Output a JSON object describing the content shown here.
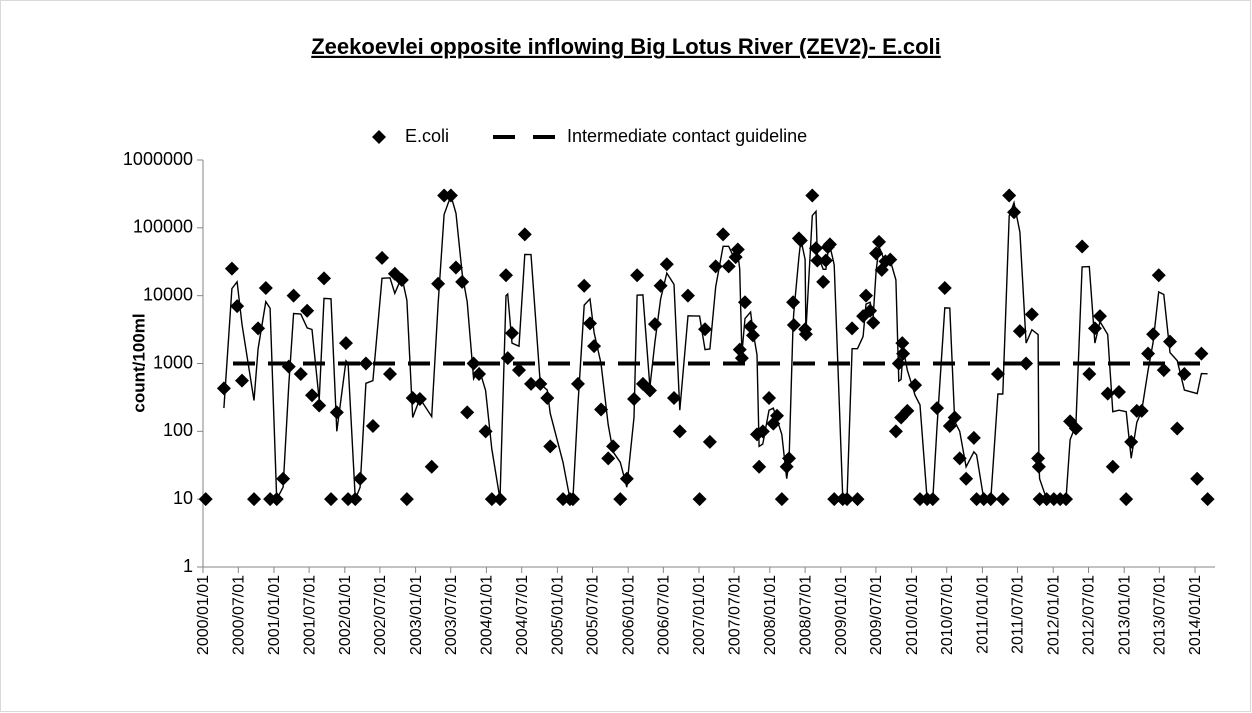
{
  "chart_data": {
    "type": "scatter",
    "title": "Zeekoevlei opposite inflowing Big Lotus River (ZEV2)- E.coli",
    "y_label": "count/100ml",
    "log_scale_y": true,
    "legend": "top",
    "trendline": {
      "type": "moving_average",
      "period": 2,
      "color": "#000000"
    },
    "xlim": [
      "2000/01/01",
      "2014/04/14"
    ],
    "xticks": [
      "2000/01/01",
      "2000/07/01",
      "2001/01/01",
      "2001/07/01",
      "2002/01/01",
      "2002/07/01",
      "2003/01/01",
      "2003/07/01",
      "2004/01/01",
      "2004/07/01",
      "2005/01/01",
      "2005/07/01",
      "2006/01/01",
      "2006/07/01",
      "2007/01/01",
      "2007/07/01",
      "2008/01/01",
      "2008/07/01",
      "2009/01/01",
      "2009/07/01",
      "2010/01/01",
      "2010/07/01",
      "2011/01/01",
      "2011/07/01",
      "2012/01/01",
      "2012/07/01",
      "2013/01/01",
      "2013/07/01",
      "2014/01/01"
    ],
    "ylim": [
      1,
      1000000
    ],
    "yticks": [
      1,
      10,
      100,
      1000,
      10000,
      100000,
      1000000
    ],
    "guidelines": [
      {
        "name": "Intermediate contact guideline",
        "value": 1000,
        "color": "#000000",
        "dashed": true
      }
    ],
    "series": [
      {
        "name": "E.coli",
        "marker": "diamond",
        "color": "#000000",
        "x": [
          "2000/01/15",
          "2000/04/18",
          "2000/05/29",
          "2000/06/25",
          "2000/07/20",
          "2000/09/20",
          "2000/10/11",
          "2000/11/20",
          "2000/12/12",
          "2001/01/15",
          "2001/02/17",
          "2001/03/18",
          "2001/04/12",
          "2001/05/19",
          "2001/06/21",
          "2001/07/16",
          "2001/08/22",
          "2001/09/16",
          "2001/10/22",
          "2001/11/21",
          "2002/01/07",
          "2002/01/18",
          "2002/02/24",
          "2002/03/21",
          "2002/04/20",
          "2002/05/26",
          "2002/07/12",
          "2002/08/22",
          "2002/09/16",
          "2002/10/22",
          "2002/11/17",
          "2002/12/17",
          "2003/01/23",
          "2003/03/25",
          "2003/04/27",
          "2003/05/28",
          "2003/07/02",
          "2003/07/28",
          "2003/08/29",
          "2003/09/24",
          "2003/10/27",
          "2003/11/24",
          "2003/12/28",
          "2004/01/29",
          "2004/03/11",
          "2004/04/11",
          "2004/04/20",
          "2004/05/12",
          "2004/06/17",
          "2004/07/17",
          "2004/08/18",
          "2004/10/05",
          "2004/11/10",
          "2004/11/25",
          "2005/01/30",
          "2005/03/07",
          "2005/03/22",
          "2005/04/17",
          "2005/05/19",
          "2005/06/18",
          "2005/07/09",
          "2005/08/14",
          "2005/09/20",
          "2005/10/15",
          "2005/11/21",
          "2005/12/25",
          "2006/01/31",
          "2006/02/16",
          "2006/03/18",
          "2006/04/23",
          "2006/05/19",
          "2006/06/17",
          "2006/07/19",
          "2006/08/25",
          "2006/09/24",
          "2006/11/05",
          "2007/01/04",
          "2007/02/01",
          "2007/02/26",
          "2007/03/28",
          "2007/05/05",
          "2007/06/03",
          "2007/07/09",
          "2007/07/20",
          "2007/07/30",
          "2007/08/10",
          "2007/08/26",
          "2007/09/24",
          "2007/10/06",
          "2007/10/27",
          "2007/11/07",
          "2007/11/26",
          "2007/12/28",
          "2008/01/19",
          "2008/02/07",
          "2008/03/03",
          "2008/03/28",
          "2008/04/09",
          "2008/04/30",
          "2008/05/04",
          "2008/05/30",
          "2008/06/09",
          "2008/07/01",
          "2008/07/05",
          "2008/08/07",
          "2008/08/26",
          "2008/09/02",
          "2008/10/02",
          "2008/10/16",
          "2008/10/26",
          "2008/11/06",
          "2008/11/28",
          "2009/01/11",
          "2009/02/02",
          "2009/02/28",
          "2009/03/28",
          "2009/04/26",
          "2009/05/11",
          "2009/06/01",
          "2009/06/17",
          "2009/07/02",
          "2009/07/17",
          "2009/07/31",
          "2009/08/19",
          "2009/09/13",
          "2009/10/12",
          "2009/10/27",
          "2009/11/08",
          "2009/11/14",
          "2009/11/18",
          "2009/12/10",
          "2010/01/19",
          "2010/02/13",
          "2010/03/22",
          "2010/04/20",
          "2010/05/12",
          "2010/06/21",
          "2010/07/17",
          "2010/08/11",
          "2010/09/06",
          "2010/10/09",
          "2010/11/18",
          "2010/12/02",
          "2011/01/08",
          "2011/02/13",
          "2011/03/22",
          "2011/04/16",
          "2011/05/19",
          "2011/06/13",
          "2011/07/13",
          "2011/08/14",
          "2011/09/13",
          "2011/10/15",
          "2011/10/19",
          "2011/10/23",
          "2011/11/28",
          "2012/01/04",
          "2012/02/06",
          "2012/03/07",
          "2012/03/28",
          "2012/04/27",
          "2012/05/29",
          "2012/07/05",
          "2012/08/03",
          "2012/08/29",
          "2012/10/08",
          "2012/11/03",
          "2012/12/05",
          "2013/01/11",
          "2013/02/06",
          "2013/03/07",
          "2013/04/01",
          "2013/05/04",
          "2013/05/30",
          "2013/06/28",
          "2013/07/24",
          "2013/08/25",
          "2013/10/01",
          "2013/11/07",
          "2014/01/12",
          "2014/02/03",
          "2014/03/07"
        ],
        "values": [
          10,
          430,
          25000,
          7000,
          560,
          10,
          3300,
          13000,
          10,
          10,
          20,
          900,
          10000,
          700,
          6000,
          340,
          240,
          18000,
          10,
          190,
          2000,
          10,
          10,
          20,
          1000,
          120,
          36000,
          700,
          21000,
          17000,
          10,
          310,
          300,
          30,
          15000,
          300000,
          300000,
          26000,
          16000,
          190,
          1000,
          700,
          100,
          10,
          10,
          20000,
          1200,
          2800,
          800,
          80000,
          500,
          500,
          310,
          60,
          10,
          10,
          10,
          500,
          14000,
          3900,
          1800,
          210,
          40,
          60,
          10,
          20,
          300,
          20000,
          500,
          400,
          3800,
          14000,
          29000,
          310,
          100,
          10000,
          10,
          3200,
          70,
          27000,
          80000,
          27000,
          37000,
          48000,
          1600,
          1200,
          8000,
          3500,
          2600,
          90,
          30,
          100,
          310,
          130,
          170,
          10,
          30,
          40,
          8000,
          3700,
          70000,
          65000,
          3200,
          2700,
          300000,
          50000,
          33000,
          16000,
          33000,
          52000,
          57000,
          10,
          10,
          10,
          3300,
          10,
          5000,
          10000,
          6000,
          4000,
          42000,
          62000,
          24000,
          32000,
          34000,
          100,
          1000,
          160,
          2000,
          1400,
          200,
          480,
          10,
          10,
          10,
          220,
          13000,
          120,
          160,
          40,
          20,
          80,
          10,
          10,
          10,
          700,
          10,
          300000,
          170000,
          3000,
          1000,
          5300,
          40,
          30,
          10,
          10,
          10,
          10,
          10,
          140,
          110,
          53000,
          700,
          3300,
          5000,
          360,
          30,
          380,
          10,
          70,
          200,
          200,
          1400,
          2700,
          20000,
          800,
          2100,
          110,
          700,
          20,
          1400,
          10
        ]
      }
    ]
  }
}
